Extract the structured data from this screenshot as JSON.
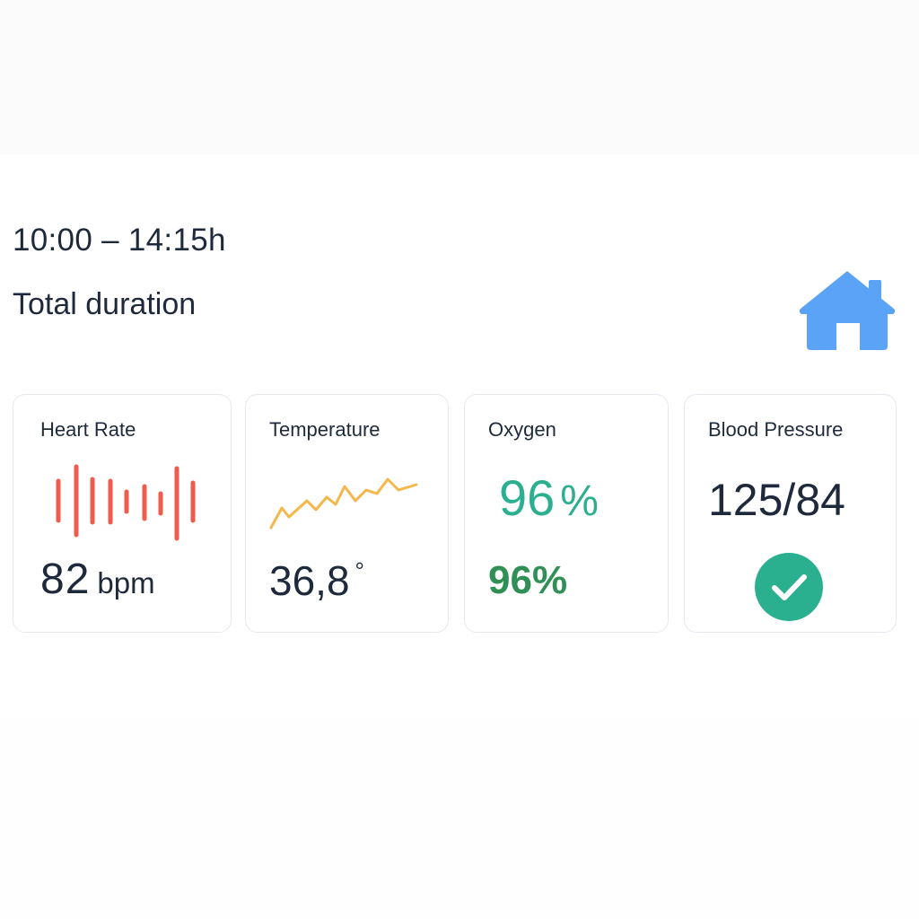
{
  "header": {
    "time_range": "10:00 – 14:15h",
    "duration_label": "Total duration"
  },
  "icons": {
    "home": "home-icon",
    "check": "check-circle-icon",
    "heart_waveform": "heart-rate-waveform-icon",
    "temperature_trend": "temperature-trend-icon"
  },
  "colors": {
    "home_icon": "#5aa3f7",
    "heart_bars": "#ef5b4c",
    "temperature_line": "#f5b64a",
    "oxygen_primary": "#2bb08f",
    "oxygen_secondary": "#2f8f55",
    "check_circle": "#2bb08f"
  },
  "cards": {
    "heart": {
      "title": "Heart Rate",
      "value": "82",
      "unit": "bpm"
    },
    "temperature": {
      "title": "Temperature",
      "value": "36,8",
      "unit": "°"
    },
    "oxygen": {
      "title": "Oxygen",
      "value": "96",
      "unit": "%",
      "secondary": "96%"
    },
    "blood_pressure": {
      "title": "Blood Pressure",
      "value": "125/84",
      "status": "normal"
    }
  }
}
